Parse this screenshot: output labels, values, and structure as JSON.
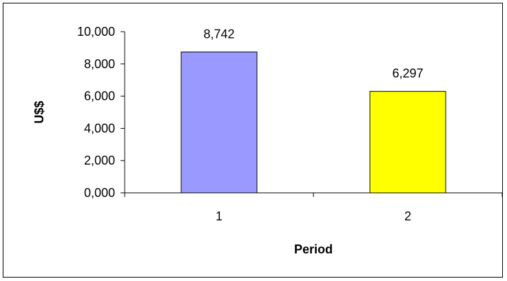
{
  "chart_data": {
    "type": "bar",
    "title": "",
    "xlabel": "Period",
    "ylabel": "U$$",
    "categories": [
      "1",
      "2"
    ],
    "values": [
      8742,
      6297
    ],
    "value_labels": [
      "8,742",
      "6,297"
    ],
    "bar_colors": [
      "#9999ff",
      "#ffff00"
    ],
    "ylim": [
      0,
      10000
    ],
    "yticks": [
      0,
      2000,
      4000,
      6000,
      8000,
      10000
    ],
    "ytick_labels": [
      "0,000",
      "2,000",
      "4,000",
      "6,000",
      "8,000",
      "10,000"
    ],
    "grid": false,
    "legend": "none"
  }
}
